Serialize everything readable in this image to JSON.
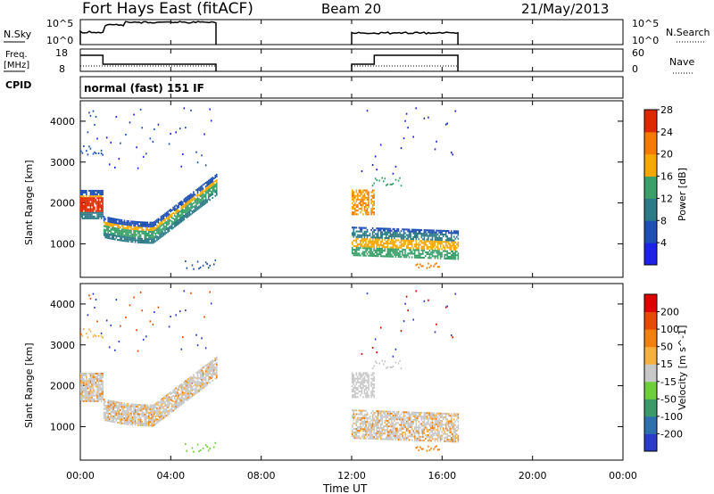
{
  "header": {
    "station": "Fort Hays East (fitACF)",
    "beam": "Beam 20",
    "date": "21/May/2013"
  },
  "mode_label": "normal (fast) 151 IF",
  "side_labels": {
    "nsky": "N.Sky",
    "freq_top": "Freq.",
    "freq_unit": "[MHz]",
    "cpid": "CPID",
    "nsearch": "N.Search",
    "nave": "Nave"
  },
  "ticks": {
    "nsky_top": "10^5",
    "nsky_bot": "10^0",
    "nsearch_top": "10^5",
    "nsearch_bot": "10^0",
    "freq_top": "18",
    "freq_bot": "8",
    "nave_top": "60",
    "nave_bot": "0"
  },
  "chart_data": [
    {
      "type": "heatmap",
      "name": "Power",
      "ylabel": "Slant Range [km]",
      "xlabel": "Time UT",
      "xlim": [
        0,
        24
      ],
      "x_ticks": [
        "00:00",
        "04:00",
        "08:00",
        "12:00",
        "16:00",
        "20:00",
        "00:00"
      ],
      "ylim": [
        180,
        4500
      ],
      "y_ticks": [
        1000,
        2000,
        3000,
        4000
      ],
      "colorbar_label": "Power [dB]",
      "colorbar_ticks": [
        4,
        8,
        12,
        16,
        20,
        24,
        28
      ],
      "colorbar_colors": [
        "#1e22e8",
        "#1f4fb4",
        "#2b7a86",
        "#3aa06a",
        "#f5a800",
        "#f57a00",
        "#e02800"
      ],
      "data_windows_hours": [
        [
          0,
          6
        ],
        [
          12,
          16.7
        ]
      ]
    },
    {
      "type": "heatmap",
      "name": "Velocity",
      "ylabel": "Slant Range [km]",
      "xlabel": "Time UT",
      "xlim": [
        0,
        24
      ],
      "x_ticks": [
        "00:00",
        "04:00",
        "08:00",
        "12:00",
        "16:00",
        "20:00",
        "00:00"
      ],
      "ylim": [
        180,
        4500
      ],
      "y_ticks": [
        1000,
        2000,
        3000,
        4000
      ],
      "colorbar_label": "Velocity [m s^-1]",
      "colorbar_ticks": [
        "200",
        "100",
        "50",
        "15",
        "-15",
        "-50",
        "-100",
        "-200"
      ],
      "colorbar_colors": [
        "#2a3cc8",
        "#2e6fb0",
        "#3a9a6a",
        "#6fcf3a",
        "#c8c8c8",
        "#f5b040",
        "#f08010",
        "#e84a00",
        "#e00000"
      ],
      "data_windows_hours": [
        [
          0,
          6
        ],
        [
          12,
          16.7
        ]
      ]
    }
  ]
}
